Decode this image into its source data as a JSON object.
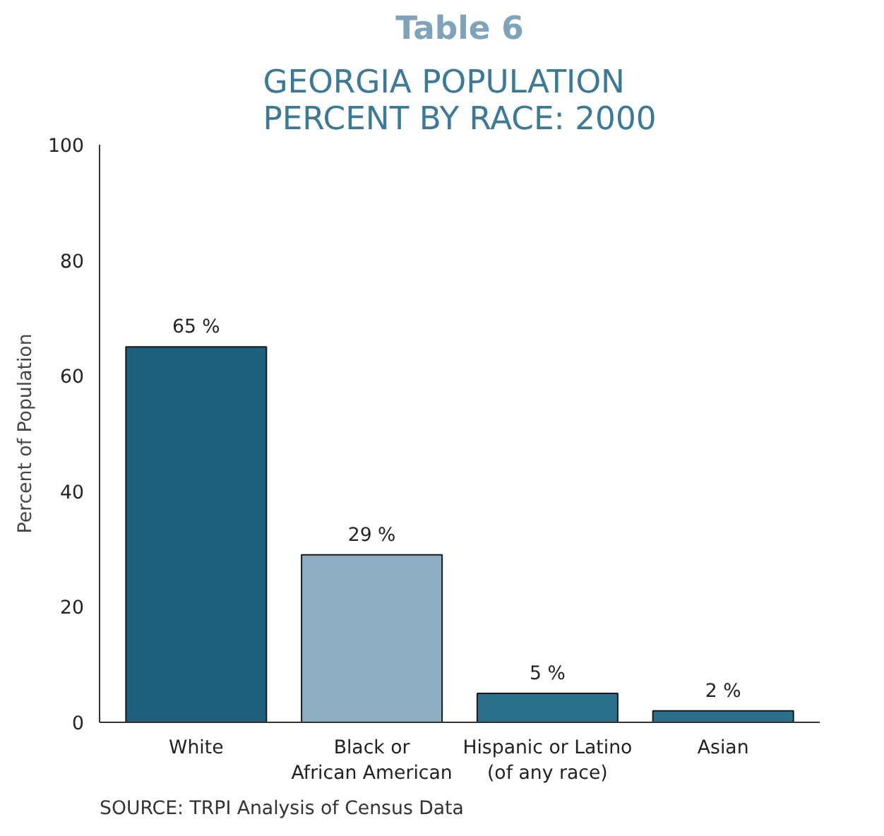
{
  "chart_data": {
    "type": "bar",
    "title": "Table 6",
    "subtitle": "GEORGIA POPULATION\nPERCENT BY RACE: 2000",
    "ylabel": "Percent of Population",
    "categories": [
      "White",
      "Black or\nAfrican American",
      "Hispanic or Latino\n(of any race)",
      "Asian"
    ],
    "values": [
      65,
      29,
      5,
      2
    ],
    "colors": [
      "#1d5f7c",
      "#8eafc3",
      "#2a6f8c",
      "#2a6f8c"
    ],
    "value_labels": [
      "65 %",
      "29 %",
      "5 %",
      "2 %"
    ],
    "ylim": [
      0,
      100
    ],
    "yticks": [
      0,
      20,
      40,
      60,
      80,
      100
    ],
    "grid": false,
    "annotations": [
      "SOURCE: TRPI Analysis of Census Data"
    ]
  }
}
